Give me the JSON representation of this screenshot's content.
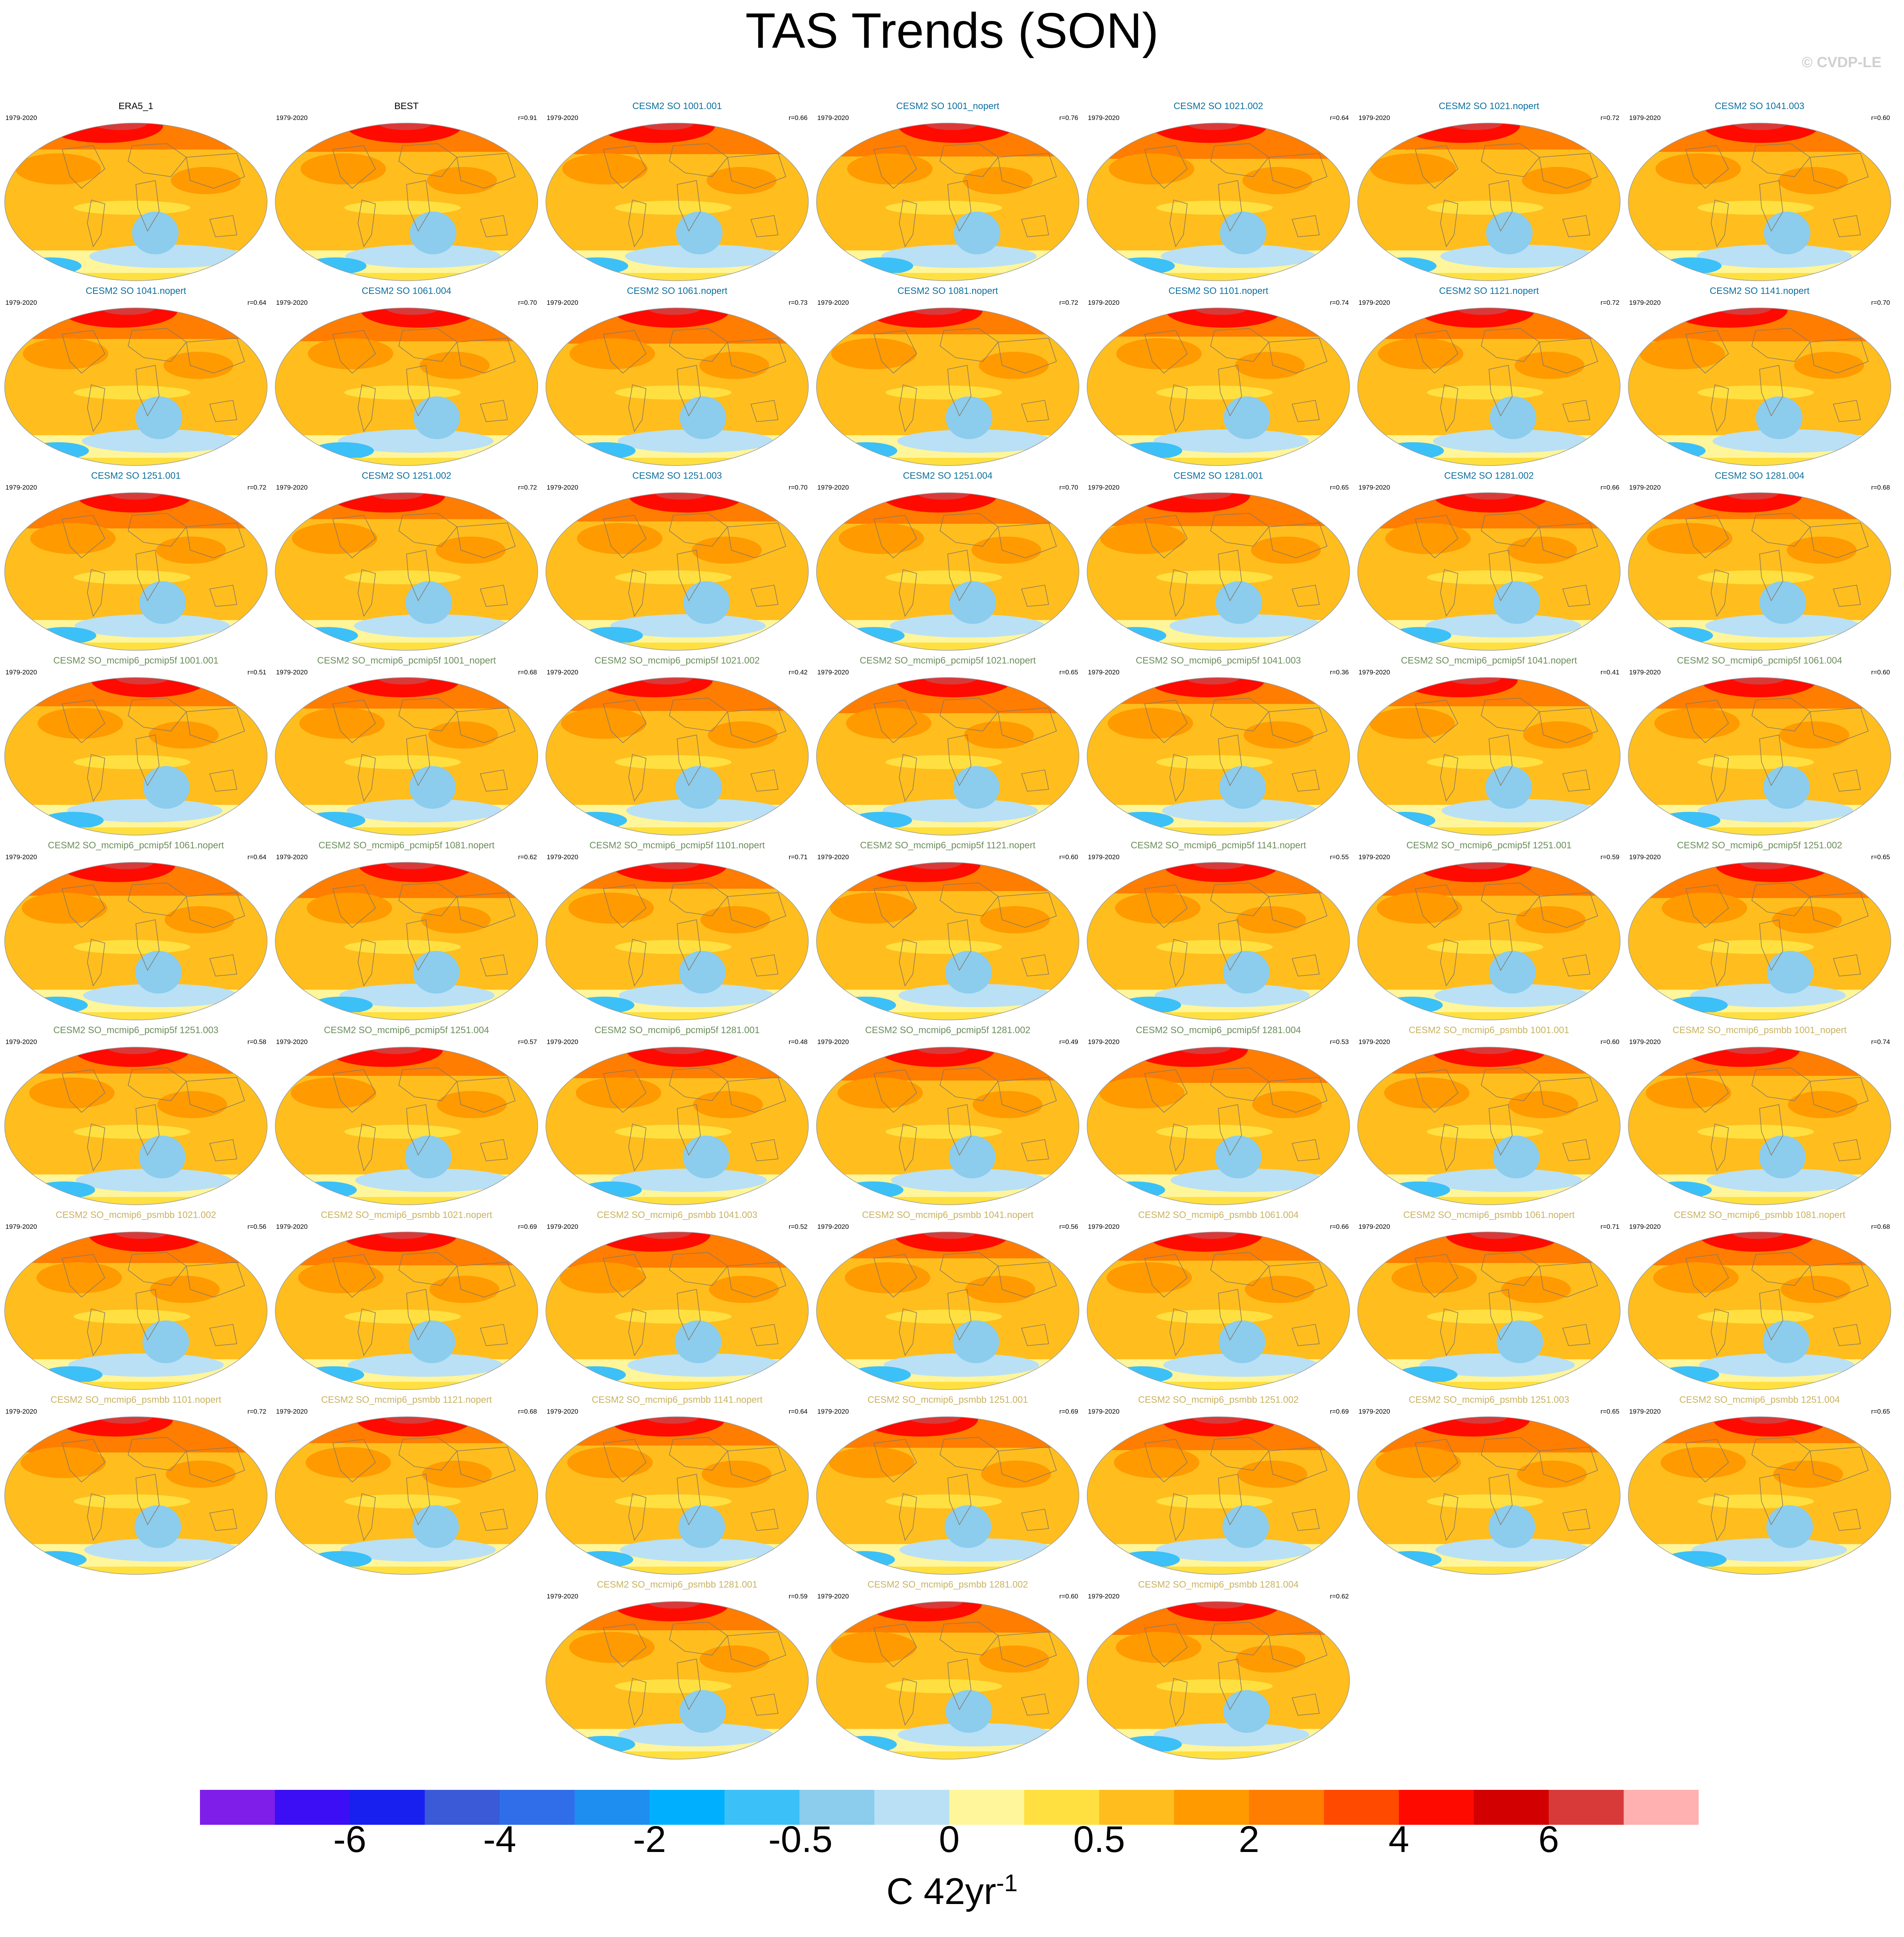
{
  "title": "TAS Trends (SON)",
  "credit": "© CVDP-LE",
  "period": "1979-2020",
  "title_colors": {
    "obs": "#000000",
    "cesm2_so": "#0e6f9e",
    "pcmip5f": "#6b8d5a",
    "psmbb": "#c9b260"
  },
  "panels": [
    {
      "title": "ERA5_1",
      "group": "obs",
      "r": ""
    },
    {
      "title": "BEST",
      "group": "obs",
      "r": "r=0.91"
    },
    {
      "title": "CESM2 SO 1001.001",
      "group": "cesm2_so",
      "r": "r=0.66"
    },
    {
      "title": "CESM2 SO 1001_nopert",
      "group": "cesm2_so",
      "r": "r=0.76"
    },
    {
      "title": "CESM2 SO 1021.002",
      "group": "cesm2_so",
      "r": "r=0.64"
    },
    {
      "title": "CESM2 SO 1021.nopert",
      "group": "cesm2_so",
      "r": "r=0.72"
    },
    {
      "title": "CESM2 SO 1041.003",
      "group": "cesm2_so",
      "r": "r=0.60"
    },
    {
      "title": "CESM2 SO 1041.nopert",
      "group": "cesm2_so",
      "r": "r=0.64"
    },
    {
      "title": "CESM2 SO 1061.004",
      "group": "cesm2_so",
      "r": "r=0.70"
    },
    {
      "title": "CESM2 SO 1061.nopert",
      "group": "cesm2_so",
      "r": "r=0.73"
    },
    {
      "title": "CESM2 SO 1081.nopert",
      "group": "cesm2_so",
      "r": "r=0.72"
    },
    {
      "title": "CESM2 SO 1101.nopert",
      "group": "cesm2_so",
      "r": "r=0.74"
    },
    {
      "title": "CESM2 SO 1121.nopert",
      "group": "cesm2_so",
      "r": "r=0.72"
    },
    {
      "title": "CESM2 SO 1141.nopert",
      "group": "cesm2_so",
      "r": "r=0.70"
    },
    {
      "title": "CESM2 SO 1251.001",
      "group": "cesm2_so",
      "r": "r=0.72"
    },
    {
      "title": "CESM2 SO 1251.002",
      "group": "cesm2_so",
      "r": "r=0.72"
    },
    {
      "title": "CESM2 SO 1251.003",
      "group": "cesm2_so",
      "r": "r=0.70"
    },
    {
      "title": "CESM2 SO 1251.004",
      "group": "cesm2_so",
      "r": "r=0.70"
    },
    {
      "title": "CESM2 SO 1281.001",
      "group": "cesm2_so",
      "r": "r=0.65"
    },
    {
      "title": "CESM2 SO 1281.002",
      "group": "cesm2_so",
      "r": "r=0.66"
    },
    {
      "title": "CESM2 SO 1281.004",
      "group": "cesm2_so",
      "r": "r=0.68"
    },
    {
      "title": "CESM2 SO_mcmip6_pcmip5f 1001.001",
      "group": "pcmip5f",
      "r": "r=0.51"
    },
    {
      "title": "CESM2 SO_mcmip6_pcmip5f 1001_nopert",
      "group": "pcmip5f",
      "r": "r=0.68"
    },
    {
      "title": "CESM2 SO_mcmip6_pcmip5f 1021.002",
      "group": "pcmip5f",
      "r": "r=0.42"
    },
    {
      "title": "CESM2 SO_mcmip6_pcmip5f 1021.nopert",
      "group": "pcmip5f",
      "r": "r=0.65"
    },
    {
      "title": "CESM2 SO_mcmip6_pcmip5f 1041.003",
      "group": "pcmip5f",
      "r": "r=0.36"
    },
    {
      "title": "CESM2 SO_mcmip6_pcmip5f 1041.nopert",
      "group": "pcmip5f",
      "r": "r=0.41"
    },
    {
      "title": "CESM2 SO_mcmip6_pcmip5f 1061.004",
      "group": "pcmip5f",
      "r": "r=0.60"
    },
    {
      "title": "CESM2 SO_mcmip6_pcmip5f 1061.nopert",
      "group": "pcmip5f",
      "r": "r=0.64"
    },
    {
      "title": "CESM2 SO_mcmip6_pcmip5f 1081.nopert",
      "group": "pcmip5f",
      "r": "r=0.62"
    },
    {
      "title": "CESM2 SO_mcmip6_pcmip5f 1101.nopert",
      "group": "pcmip5f",
      "r": "r=0.71"
    },
    {
      "title": "CESM2 SO_mcmip6_pcmip5f 1121.nopert",
      "group": "pcmip5f",
      "r": "r=0.60"
    },
    {
      "title": "CESM2 SO_mcmip6_pcmip5f 1141.nopert",
      "group": "pcmip5f",
      "r": "r=0.55"
    },
    {
      "title": "CESM2 SO_mcmip6_pcmip5f 1251.001",
      "group": "pcmip5f",
      "r": "r=0.59"
    },
    {
      "title": "CESM2 SO_mcmip6_pcmip5f 1251.002",
      "group": "pcmip5f",
      "r": "r=0.65"
    },
    {
      "title": "CESM2 SO_mcmip6_pcmip5f 1251.003",
      "group": "pcmip5f",
      "r": "r=0.58"
    },
    {
      "title": "CESM2 SO_mcmip6_pcmip5f 1251.004",
      "group": "pcmip5f",
      "r": "r=0.57"
    },
    {
      "title": "CESM2 SO_mcmip6_pcmip5f 1281.001",
      "group": "pcmip5f",
      "r": "r=0.48"
    },
    {
      "title": "CESM2 SO_mcmip6_pcmip5f 1281.002",
      "group": "pcmip5f",
      "r": "r=0.49"
    },
    {
      "title": "CESM2 SO_mcmip6_pcmip5f 1281.004",
      "group": "pcmip5f",
      "r": "r=0.53"
    },
    {
      "title": "CESM2 SO_mcmip6_psmbb 1001.001",
      "group": "psmbb",
      "r": "r=0.60"
    },
    {
      "title": "CESM2 SO_mcmip6_psmbb 1001_nopert",
      "group": "psmbb",
      "r": "r=0.74"
    },
    {
      "title": "CESM2 SO_mcmip6_psmbb 1021.002",
      "group": "psmbb",
      "r": "r=0.56"
    },
    {
      "title": "CESM2 SO_mcmip6_psmbb 1021.nopert",
      "group": "psmbb",
      "r": "r=0.69"
    },
    {
      "title": "CESM2 SO_mcmip6_psmbb 1041.003",
      "group": "psmbb",
      "r": "r=0.52"
    },
    {
      "title": "CESM2 SO_mcmip6_psmbb 1041.nopert",
      "group": "psmbb",
      "r": "r=0.56"
    },
    {
      "title": "CESM2 SO_mcmip6_psmbb 1061.004",
      "group": "psmbb",
      "r": "r=0.66"
    },
    {
      "title": "CESM2 SO_mcmip6_psmbb 1061.nopert",
      "group": "psmbb",
      "r": "r=0.71"
    },
    {
      "title": "CESM2 SO_mcmip6_psmbb 1081.nopert",
      "group": "psmbb",
      "r": "r=0.68"
    },
    {
      "title": "CESM2 SO_mcmip6_psmbb 1101.nopert",
      "group": "psmbb",
      "r": "r=0.72"
    },
    {
      "title": "CESM2 SO_mcmip6_psmbb 1121.nopert",
      "group": "psmbb",
      "r": "r=0.68"
    },
    {
      "title": "CESM2 SO_mcmip6_psmbb 1141.nopert",
      "group": "psmbb",
      "r": "r=0.64"
    },
    {
      "title": "CESM2 SO_mcmip6_psmbb 1251.001",
      "group": "psmbb",
      "r": "r=0.69"
    },
    {
      "title": "CESM2 SO_mcmip6_psmbb 1251.002",
      "group": "psmbb",
      "r": "r=0.69"
    },
    {
      "title": "CESM2 SO_mcmip6_psmbb 1251.003",
      "group": "psmbb",
      "r": "r=0.65"
    },
    {
      "title": "CESM2 SO_mcmip6_psmbb 1251.004",
      "group": "psmbb",
      "r": "r=0.65"
    },
    {
      "title": "CESM2 SO_mcmip6_psmbb 1281.001",
      "group": "psmbb",
      "r": "r=0.59"
    },
    {
      "title": "CESM2 SO_mcmip6_psmbb 1281.002",
      "group": "psmbb",
      "r": "r=0.60"
    },
    {
      "title": "CESM2 SO_mcmip6_psmbb 1281.004",
      "group": "psmbb",
      "r": "r=0.62"
    }
  ],
  "colorbar": {
    "colors": [
      "#7f1ee8",
      "#3c0ef5",
      "#1820f0",
      "#3a5ad8",
      "#2f6ee8",
      "#1e8ef0",
      "#00b0ff",
      "#3cc0f8",
      "#8ccced",
      "#b9e0f5",
      "#fff59a",
      "#ffe040",
      "#ffbe1e",
      "#ff9a00",
      "#ff7d00",
      "#ff4a00",
      "#ff0a00",
      "#d20000",
      "#d83a3a",
      "#ffb0b0"
    ],
    "tick_labels": [
      "-6",
      "-4",
      "-2",
      "-0.5",
      "0",
      "0.5",
      "2",
      "4",
      "6"
    ],
    "units": "C 42yr",
    "units_exponent": "-1"
  }
}
